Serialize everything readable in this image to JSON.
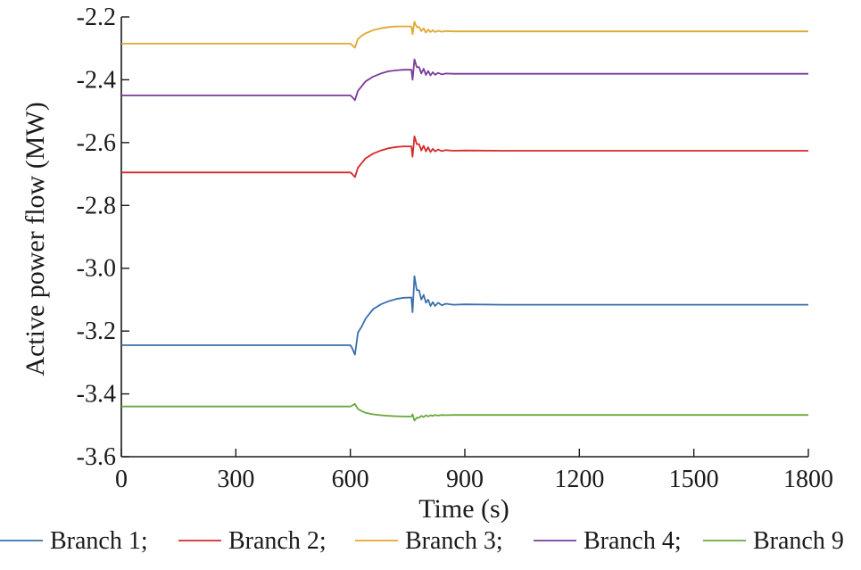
{
  "chart_data": {
    "type": "line",
    "title": "",
    "xlabel": "Time (s)",
    "ylabel": "Active power flow (MW)",
    "xlim": [
      0,
      1800
    ],
    "ylim": [
      -3.6,
      -2.2
    ],
    "xticks": [
      0,
      300,
      600,
      900,
      1200,
      1500,
      1800
    ],
    "xtick_labels": [
      "0",
      "300",
      "600",
      "900",
      "1200",
      "1500",
      "1800"
    ],
    "yticks": [
      -2.2,
      -2.4,
      -2.6,
      -2.8,
      -3.0,
      -3.2,
      -3.4,
      -3.6
    ],
    "ytick_labels": [
      "-2.2",
      "-2.4",
      "-2.6",
      "-2.8",
      "-3.0",
      "-3.2",
      "-3.4",
      "-3.6"
    ],
    "grid": false,
    "legend_position": "bottom",
    "legend_labels": [
      "Branch 1;",
      "Branch 2;",
      "Branch 3;",
      "Branch 4;",
      "Branch 9"
    ],
    "series": [
      {
        "name": "Branch 1",
        "color": "#3a6fad",
        "x": [
          0,
          600,
          605,
          612,
          620,
          630,
          640,
          660,
          680,
          700,
          720,
          740,
          760,
          763,
          768,
          774,
          780,
          786,
          792,
          798,
          804,
          810,
          816,
          822,
          830,
          840,
          850,
          870,
          900,
          1000,
          1200,
          1500,
          1800
        ],
        "y": [
          -3.245,
          -3.245,
          -3.255,
          -3.275,
          -3.205,
          -3.185,
          -3.16,
          -3.13,
          -3.115,
          -3.105,
          -3.098,
          -3.094,
          -3.093,
          -3.14,
          -3.025,
          -3.07,
          -3.07,
          -3.1,
          -3.085,
          -3.11,
          -3.1,
          -3.12,
          -3.108,
          -3.12,
          -3.11,
          -3.118,
          -3.113,
          -3.116,
          -3.115,
          -3.116,
          -3.116,
          -3.116,
          -3.116
        ]
      },
      {
        "name": "Branch 2",
        "color": "#d62a2a",
        "x": [
          0,
          600,
          605,
          612,
          620,
          630,
          640,
          660,
          680,
          700,
          720,
          740,
          760,
          763,
          768,
          774,
          780,
          786,
          792,
          798,
          804,
          810,
          816,
          822,
          830,
          840,
          850,
          870,
          900,
          1000,
          1200,
          1500,
          1800
        ],
        "y": [
          -2.695,
          -2.695,
          -2.7,
          -2.71,
          -2.68,
          -2.665,
          -2.65,
          -2.635,
          -2.625,
          -2.618,
          -2.614,
          -2.612,
          -2.612,
          -2.645,
          -2.58,
          -2.605,
          -2.605,
          -2.625,
          -2.61,
          -2.628,
          -2.615,
          -2.63,
          -2.62,
          -2.628,
          -2.622,
          -2.627,
          -2.624,
          -2.626,
          -2.625,
          -2.626,
          -2.626,
          -2.626,
          -2.626
        ]
      },
      {
        "name": "Branch 3",
        "color": "#e0a82e",
        "x": [
          0,
          600,
          605,
          612,
          620,
          630,
          640,
          660,
          680,
          700,
          720,
          740,
          760,
          763,
          768,
          774,
          780,
          786,
          792,
          798,
          804,
          810,
          816,
          822,
          830,
          840,
          850,
          870,
          900,
          1000,
          1200,
          1500,
          1800
        ],
        "y": [
          -2.285,
          -2.285,
          -2.29,
          -2.298,
          -2.27,
          -2.26,
          -2.252,
          -2.242,
          -2.236,
          -2.232,
          -2.23,
          -2.23,
          -2.23,
          -2.255,
          -2.215,
          -2.232,
          -2.232,
          -2.245,
          -2.236,
          -2.25,
          -2.24,
          -2.248,
          -2.242,
          -2.248,
          -2.244,
          -2.247,
          -2.245,
          -2.246,
          -2.246,
          -2.246,
          -2.246,
          -2.246,
          -2.246
        ]
      },
      {
        "name": "Branch 4",
        "color": "#7b3a9c",
        "x": [
          0,
          600,
          605,
          612,
          620,
          630,
          640,
          660,
          680,
          700,
          720,
          740,
          760,
          763,
          768,
          774,
          780,
          786,
          792,
          798,
          804,
          810,
          816,
          822,
          830,
          840,
          850,
          870,
          900,
          1000,
          1200,
          1500,
          1800
        ],
        "y": [
          -2.45,
          -2.45,
          -2.455,
          -2.465,
          -2.435,
          -2.42,
          -2.405,
          -2.39,
          -2.38,
          -2.373,
          -2.37,
          -2.368,
          -2.368,
          -2.4,
          -2.335,
          -2.36,
          -2.36,
          -2.38,
          -2.365,
          -2.385,
          -2.372,
          -2.386,
          -2.376,
          -2.384,
          -2.378,
          -2.383,
          -2.38,
          -2.381,
          -2.381,
          -2.381,
          -2.381,
          -2.381,
          -2.381
        ]
      },
      {
        "name": "Branch 9",
        "color": "#6aa83a",
        "x": [
          0,
          600,
          605,
          612,
          620,
          630,
          640,
          660,
          680,
          700,
          720,
          740,
          760,
          763,
          768,
          774,
          780,
          786,
          792,
          798,
          804,
          810,
          816,
          822,
          830,
          840,
          850,
          870,
          900,
          1000,
          1200,
          1500,
          1800
        ],
        "y": [
          -3.44,
          -3.44,
          -3.437,
          -3.432,
          -3.448,
          -3.455,
          -3.46,
          -3.465,
          -3.468,
          -3.47,
          -3.471,
          -3.472,
          -3.472,
          -3.465,
          -3.485,
          -3.476,
          -3.476,
          -3.47,
          -3.474,
          -3.468,
          -3.472,
          -3.468,
          -3.47,
          -3.467,
          -3.469,
          -3.467,
          -3.468,
          -3.467,
          -3.467,
          -3.467,
          -3.467,
          -3.467,
          -3.467
        ]
      }
    ]
  }
}
